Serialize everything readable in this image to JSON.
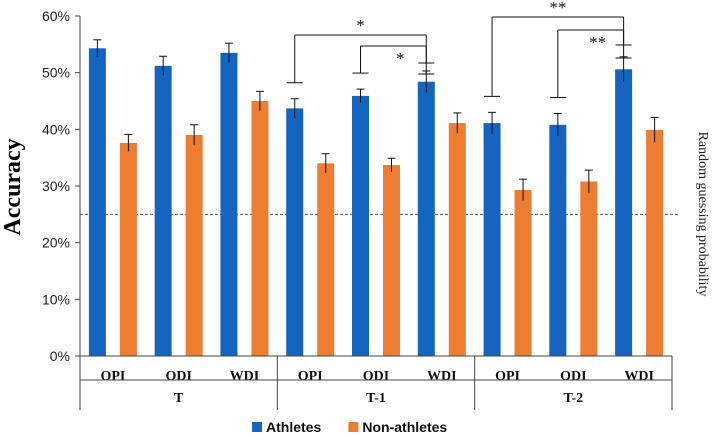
{
  "chart_data": {
    "type": "bar",
    "title": "",
    "xlabel": "",
    "ylabel": "Accuracy",
    "ylim": [
      0,
      60
    ],
    "y_ticks": [
      "0%",
      "10%",
      "20%",
      "30%",
      "40%",
      "50%",
      "60%"
    ],
    "categories": [
      "OPI",
      "ODI",
      "WDI",
      "OPI",
      "ODI",
      "WDI",
      "OPI",
      "ODI",
      "WDI"
    ],
    "groups": [
      {
        "label": "T",
        "span": [
          0,
          2
        ]
      },
      {
        "label": "T-1",
        "span": [
          3,
          5
        ]
      },
      {
        "label": "T-2",
        "span": [
          6,
          8
        ]
      }
    ],
    "series": [
      {
        "name": "Athletes",
        "color": "#1565c0",
        "values": [
          54.3,
          51.2,
          53.5,
          43.7,
          45.9,
          48.4,
          41.1,
          40.8,
          50.6
        ],
        "errors": [
          1.5,
          1.7,
          1.7,
          1.7,
          1.2,
          1.9,
          1.9,
          2.0,
          2.2
        ]
      },
      {
        "name": "Non-athletes",
        "color": "#ed7d31",
        "values": [
          37.6,
          39.0,
          45.0,
          34.0,
          33.7,
          41.1,
          29.3,
          30.8,
          39.9
        ],
        "errors": [
          1.5,
          1.8,
          1.7,
          1.7,
          1.2,
          1.8,
          1.9,
          2.0,
          2.2
        ]
      }
    ],
    "reference_line": {
      "value": 25,
      "label": "Random guessing probability",
      "style": "dashed"
    },
    "significance": [
      {
        "from": 3,
        "to": 5,
        "label": "*"
      },
      {
        "from": 4,
        "to": 5,
        "label": "*"
      },
      {
        "from": 6,
        "to": 8,
        "label": "**"
      },
      {
        "from": 7,
        "to": 8,
        "label": "**"
      }
    ],
    "legend_position": "bottom"
  }
}
